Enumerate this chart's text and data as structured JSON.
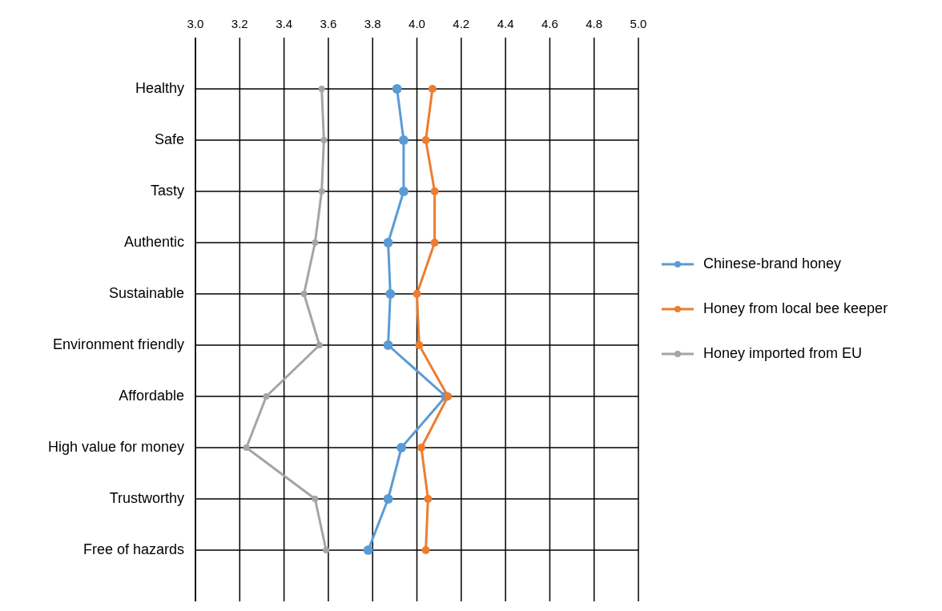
{
  "chart_data": {
    "type": "line",
    "orientation": "horizontal",
    "categories": [
      "Healthy",
      "Safe",
      "Tasty",
      "Authentic",
      "Sustainable",
      "Environment friendly",
      "Affordable",
      "High value for money",
      "Trustworthy",
      "Free of hazards"
    ],
    "series": [
      {
        "name": "Chinese-brand honey",
        "color": "#5b9bd5",
        "values": [
          3.91,
          3.94,
          3.94,
          3.87,
          3.88,
          3.87,
          4.13,
          3.93,
          3.87,
          3.78
        ]
      },
      {
        "name": "Honey from local bee keeper",
        "color": "#ed7d31",
        "values": [
          4.07,
          4.04,
          4.08,
          4.08,
          4.0,
          4.01,
          4.14,
          4.02,
          4.05,
          4.04
        ]
      },
      {
        "name": "Honey imported from EU",
        "color": "#a5a5a5",
        "values": [
          3.57,
          3.58,
          3.57,
          3.54,
          3.49,
          3.56,
          3.32,
          3.23,
          3.54,
          3.59
        ]
      }
    ],
    "xlim": [
      3,
      5
    ],
    "xticks": [
      {
        "value": 3,
        "label": "3.0"
      },
      {
        "value": 3.2,
        "label": "3.2"
      },
      {
        "value": 3.4,
        "label": "3.4"
      },
      {
        "value": 3.6,
        "label": "3.6"
      },
      {
        "value": 3.8,
        "label": "3.8"
      },
      {
        "value": 4,
        "label": "4.0"
      },
      {
        "value": 4.2,
        "label": "4.2"
      },
      {
        "value": 4.4,
        "label": "4.4"
      },
      {
        "value": 4.6,
        "label": "4.6"
      },
      {
        "value": 4.8,
        "label": "4.8"
      },
      {
        "value": 5,
        "label": "5.0"
      }
    ],
    "grid": true,
    "legend": "right",
    "marker": "circle",
    "line_style": "solid"
  }
}
